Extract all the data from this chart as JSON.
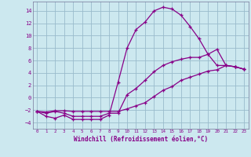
{
  "xlabel": "Windchill (Refroidissement éolien,°C)",
  "bg_color": "#cce8ef",
  "line_color": "#880088",
  "grid_color": "#99bbcc",
  "xlim": [
    -0.5,
    23.5
  ],
  "ylim": [
    -5.0,
    15.5
  ],
  "yticks": [
    -4,
    -2,
    0,
    2,
    4,
    6,
    8,
    10,
    12,
    14
  ],
  "xticks": [
    0,
    1,
    2,
    3,
    4,
    5,
    6,
    7,
    8,
    9,
    10,
    11,
    12,
    13,
    14,
    15,
    16,
    17,
    18,
    19,
    20,
    21,
    22,
    23
  ],
  "curve1_x": [
    0,
    1,
    2,
    3,
    4,
    5,
    6,
    7,
    8,
    9,
    10,
    11,
    12,
    13,
    14,
    15,
    16,
    17,
    18,
    19,
    20,
    21,
    22,
    23
  ],
  "curve1_y": [
    -2.2,
    -3.0,
    -3.3,
    -2.8,
    -3.5,
    -3.5,
    -3.5,
    -3.5,
    -2.8,
    2.5,
    8.0,
    11.0,
    12.2,
    14.0,
    14.6,
    14.3,
    13.3,
    11.5,
    9.5,
    7.0,
    5.2,
    5.2,
    5.0,
    4.6
  ],
  "curve2_x": [
    0,
    1,
    2,
    3,
    4,
    5,
    6,
    7,
    8,
    9,
    10,
    11,
    12,
    13,
    14,
    15,
    16,
    17,
    18,
    19,
    20,
    21,
    22,
    23
  ],
  "curve2_y": [
    -2.2,
    -2.5,
    -2.2,
    -2.5,
    -3.0,
    -3.0,
    -3.0,
    -3.0,
    -2.5,
    -2.5,
    0.5,
    1.5,
    2.8,
    4.2,
    5.2,
    5.8,
    6.2,
    6.5,
    6.5,
    7.0,
    7.8,
    5.2,
    5.0,
    4.6
  ],
  "curve3_x": [
    0,
    1,
    2,
    3,
    4,
    5,
    6,
    7,
    8,
    9,
    10,
    11,
    12,
    13,
    14,
    15,
    16,
    17,
    18,
    19,
    20,
    21,
    22,
    23
  ],
  "curve3_y": [
    -2.2,
    -2.3,
    -2.1,
    -2.1,
    -2.2,
    -2.2,
    -2.2,
    -2.2,
    -2.2,
    -2.2,
    -1.8,
    -1.3,
    -0.8,
    0.2,
    1.2,
    1.8,
    2.8,
    3.3,
    3.8,
    4.3,
    4.5,
    5.2,
    5.0,
    4.6
  ]
}
